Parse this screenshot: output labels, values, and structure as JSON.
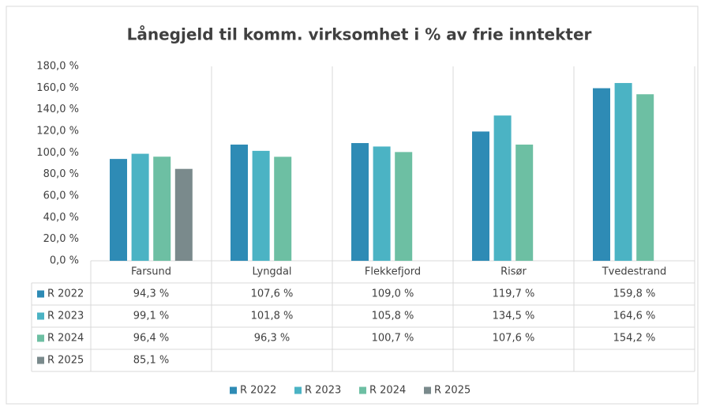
{
  "chart_data": {
    "type": "bar",
    "title": "Lånegjeld til komm. virksomhet i % av frie inntekter",
    "categories": [
      "Farsund",
      "Lyngdal",
      "Flekkefjord",
      "Risør",
      "Tvedestrand"
    ],
    "series": [
      {
        "name": "R 2022",
        "color": "#2e8bb5",
        "values": [
          94.3,
          107.6,
          109.0,
          119.7,
          159.8
        ],
        "value_labels": [
          "94,3 %",
          "107,6 %",
          "109,0 %",
          "119,7 %",
          "159,8 %"
        ]
      },
      {
        "name": "R 2023",
        "color": "#4bb3c4",
        "values": [
          99.1,
          101.8,
          105.8,
          134.5,
          164.6
        ],
        "value_labels": [
          "99,1 %",
          "101,8 %",
          "105,8 %",
          "134,5 %",
          "164,6 %"
        ]
      },
      {
        "name": "R 2024",
        "color": "#6dbfa3",
        "values": [
          96.4,
          96.3,
          100.7,
          107.6,
          154.2
        ],
        "value_labels": [
          "96,4 %",
          "96,3 %",
          "100,7 %",
          "107,6 %",
          "154,2 %"
        ]
      },
      {
        "name": "R 2025",
        "color": "#7a8a8c",
        "values": [
          85.1,
          null,
          null,
          null,
          null
        ],
        "value_labels": [
          "85,1 %",
          null,
          null,
          null,
          null
        ]
      }
    ],
    "ylim": [
      0,
      180
    ],
    "yticks": [
      {
        "value": 0,
        "label": "0,0 %"
      },
      {
        "value": 20,
        "label": "20,0 %"
      },
      {
        "value": 40,
        "label": "40,0 %"
      },
      {
        "value": 60,
        "label": "60,0 %"
      },
      {
        "value": 80,
        "label": "80,0 %"
      },
      {
        "value": 100,
        "label": "100,0 %"
      },
      {
        "value": 120,
        "label": "120,0 %"
      },
      {
        "value": 140,
        "label": "140,0 %"
      },
      {
        "value": 160,
        "label": "160,0 %"
      },
      {
        "value": 180,
        "label": "180,0 %"
      }
    ],
    "grid": false,
    "legend": "bottom"
  }
}
